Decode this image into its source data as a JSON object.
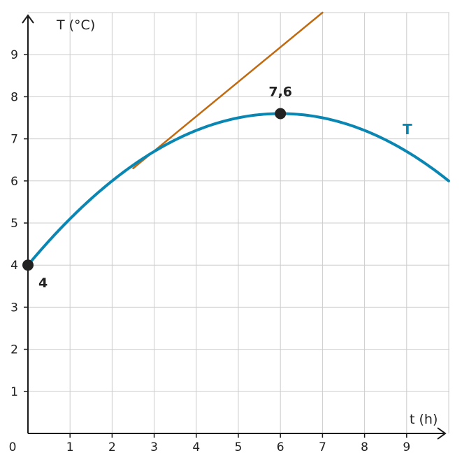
{
  "chart_data": {
    "type": "line",
    "xlabel": "t (h)",
    "ylabel": "T (°C)",
    "xlim": [
      0,
      10
    ],
    "ylim": [
      0,
      10
    ],
    "x_ticks": [
      "0",
      "1",
      "2",
      "3",
      "4",
      "5",
      "6",
      "7",
      "8",
      "9"
    ],
    "y_ticks": [
      "1",
      "2",
      "3",
      "4",
      "5",
      "6",
      "7",
      "8",
      "9"
    ],
    "grid": true,
    "series": [
      {
        "name": "T",
        "color": "#0a86b3",
        "formula": "-0.1*t^2 + 1.2*t + 4",
        "x": [
          0,
          1,
          2,
          3,
          4,
          5,
          6,
          7,
          8,
          9,
          10
        ],
        "y": [
          4,
          5.1,
          6,
          6.7,
          7.2,
          7.5,
          7.6,
          7.5,
          7.2,
          6.7,
          6
        ]
      },
      {
        "color": "#c06a12",
        "x": [
          2.5,
          7
        ],
        "y": [
          6.3,
          10
        ]
      }
    ],
    "points": [
      {
        "x": 0,
        "y": 4,
        "label": "4"
      },
      {
        "x": 6,
        "y": 7.6,
        "label": "7,6"
      }
    ]
  }
}
